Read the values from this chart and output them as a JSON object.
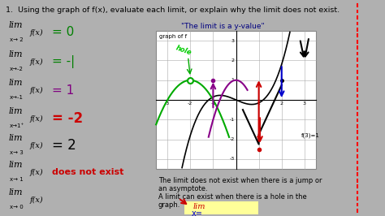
{
  "bg_color": "#b0b0b0",
  "main_bg": "#f0f0f0",
  "title_text": "1.  Using the graph of f(x), evaluate each limit, or explain why the limit does not exist.",
  "title_color": "#000000",
  "title_fontsize": 6.8,
  "quote_text": "\"The limit is a y-value\"",
  "quote_color": "#000080",
  "quote_fontsize": 6.5,
  "right_strip_color": "#c8c8c8",
  "dashed_line_color": "#cc0000",
  "note_text1": "The limit does not exist when there is a jump or\nan asymptote.",
  "note_text2": "A limit can exist when there is a hole in the\ngraph.",
  "note_fontsize": 6.0,
  "yellow_box_color": "#ffff99",
  "graph_label": "graph of f",
  "graph_bg": "#f8f8f8"
}
